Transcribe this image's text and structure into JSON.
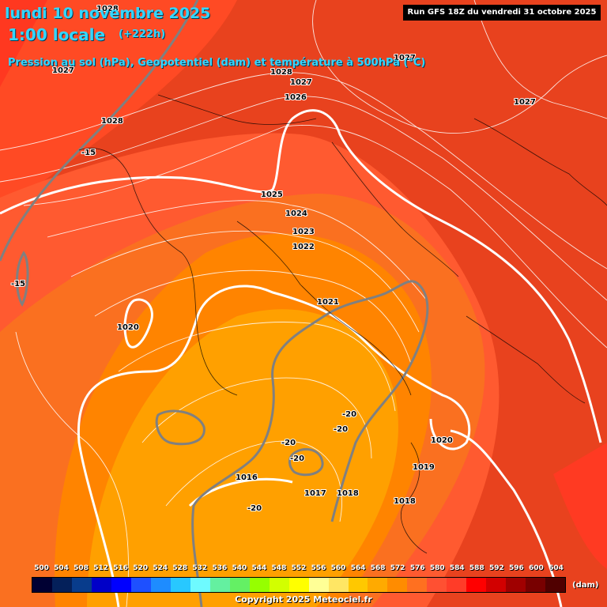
{
  "header": {
    "date": "lundi 10 novembre 2025",
    "local_time": "1:00 locale",
    "lead_time": "(+222h)",
    "parameters": "Pression au sol (hPa), Geopotentiel (dam) et température à 500hPa (°C)",
    "run": "Run GFS 18Z du vendredi 31 octobre 2025"
  },
  "isobar_labels": [
    "1028",
    "1027",
    "1028",
    "1027",
    "1026",
    "1027",
    "1027",
    "1028",
    "1025",
    "1024",
    "1023",
    "1022",
    "1021",
    "1020",
    "1020",
    "1019",
    "1018",
    "1017",
    "1018",
    "1016",
    "1027"
  ],
  "temperature_labels": [
    "-15",
    "-15",
    "-20",
    "-20",
    "-20",
    "-20",
    "-20"
  ],
  "legend": {
    "values": [
      "500",
      "504",
      "508",
      "512",
      "516",
      "520",
      "524",
      "528",
      "532",
      "536",
      "540",
      "544",
      "548",
      "552",
      "556",
      "560",
      "564",
      "568",
      "572",
      "576",
      "580",
      "584",
      "588",
      "592",
      "596",
      "600",
      "604"
    ],
    "colors": [
      "#000033",
      "#04205a",
      "#083c8c",
      "#0000c8",
      "#0000ff",
      "#1e50ff",
      "#1e8cff",
      "#28c8ff",
      "#6efaff",
      "#64f0a0",
      "#64f064",
      "#96ff00",
      "#d2ff00",
      "#ffff00",
      "#ffff96",
      "#ffe664",
      "#ffc800",
      "#ffaa00",
      "#ff8c00",
      "#ff7020",
      "#ff5032",
      "#ff3c28",
      "#ff0000",
      "#d20000",
      "#a00000",
      "#780000",
      "#500000"
    ],
    "unit": "(dam)"
  },
  "copyright": "Copyright 2025 Meteociel.fr"
}
